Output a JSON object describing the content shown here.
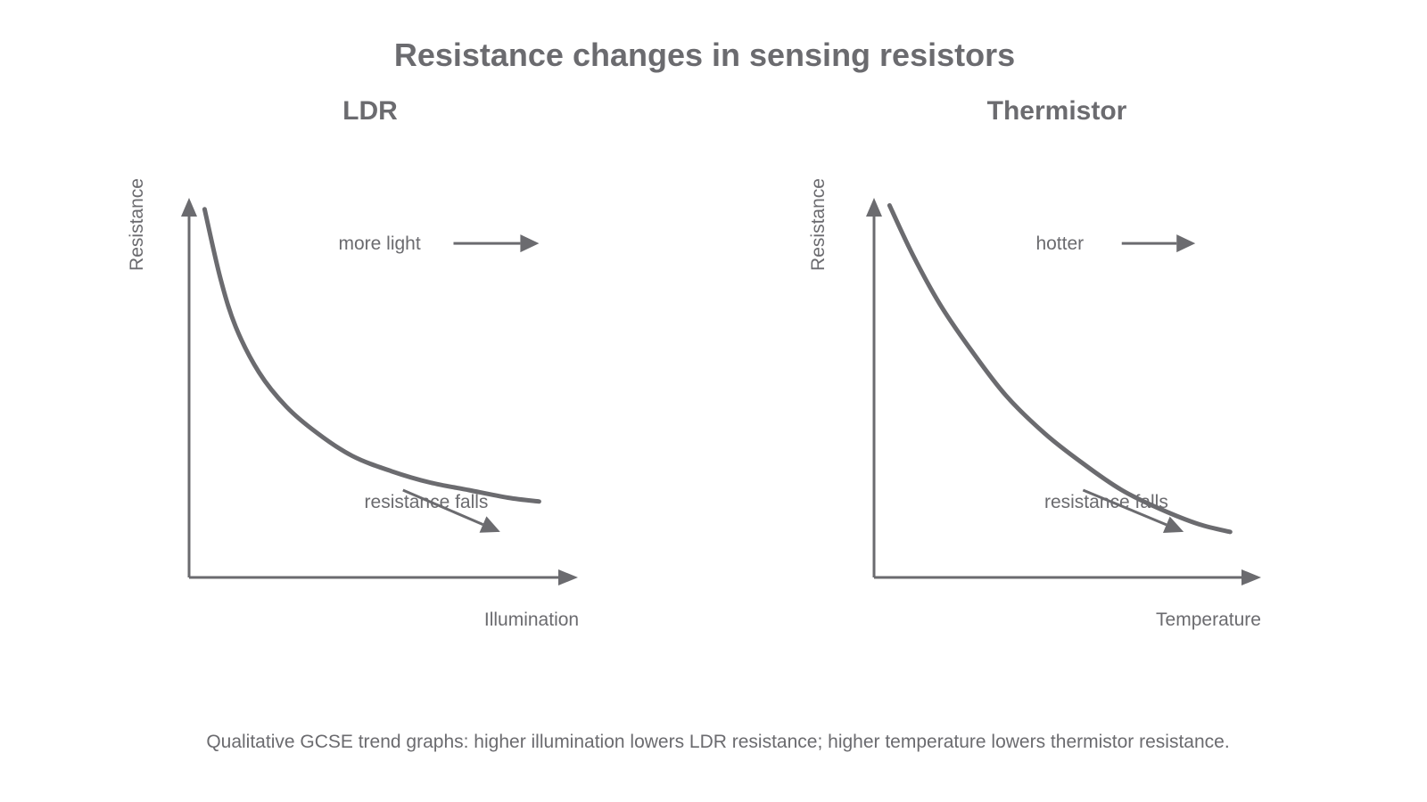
{
  "title": "Resistance changes in sensing resistors",
  "caption": "Qualitative GCSE trend graphs: higher illumination lowers LDR resistance; higher temperature lowers thermistor resistance.",
  "colors": {
    "ink": "#6b6b6f",
    "background": "#ffffff"
  },
  "chart_data": [
    {
      "type": "line",
      "title": "LDR",
      "xlabel": "Illumination",
      "ylabel": "Resistance",
      "qualitative": true,
      "grid": false,
      "xlim": [
        0,
        1
      ],
      "ylim": [
        0,
        1
      ],
      "x": [
        0.04,
        0.08,
        0.12,
        0.18,
        0.25,
        0.33,
        0.42,
        0.52,
        0.62,
        0.72,
        0.82,
        0.9
      ],
      "values": [
        0.97,
        0.79,
        0.66,
        0.54,
        0.45,
        0.38,
        0.32,
        0.28,
        0.25,
        0.23,
        0.21,
        0.2
      ],
      "annotations": [
        {
          "text": "more light",
          "x": 0.49,
          "y": 0.88,
          "arrow_to": [
            0.9,
            0.88
          ],
          "arrow_from": [
            0.68,
            0.88
          ]
        },
        {
          "text": "resistance falls",
          "x": 0.61,
          "y": 0.2,
          "arrow_from": [
            0.55,
            0.23
          ],
          "arrow_to": [
            0.8,
            0.12
          ]
        }
      ]
    },
    {
      "type": "line",
      "title": "Thermistor",
      "xlabel": "Temperature",
      "ylabel": "Resistance",
      "qualitative": true,
      "grid": false,
      "xlim": [
        0,
        1
      ],
      "ylim": [
        0,
        1
      ],
      "x": [
        0.04,
        0.1,
        0.17,
        0.25,
        0.34,
        0.44,
        0.54,
        0.64,
        0.74,
        0.84,
        0.92
      ],
      "values": [
        0.98,
        0.85,
        0.72,
        0.6,
        0.48,
        0.38,
        0.3,
        0.23,
        0.18,
        0.14,
        0.12
      ],
      "annotations": [
        {
          "text": "hotter",
          "x": 0.48,
          "y": 0.88,
          "arrow_from": [
            0.64,
            0.88
          ],
          "arrow_to": [
            0.83,
            0.88
          ]
        },
        {
          "text": "resistance falls",
          "x": 0.6,
          "y": 0.2,
          "arrow_from": [
            0.54,
            0.23
          ],
          "arrow_to": [
            0.8,
            0.12
          ]
        }
      ]
    }
  ]
}
